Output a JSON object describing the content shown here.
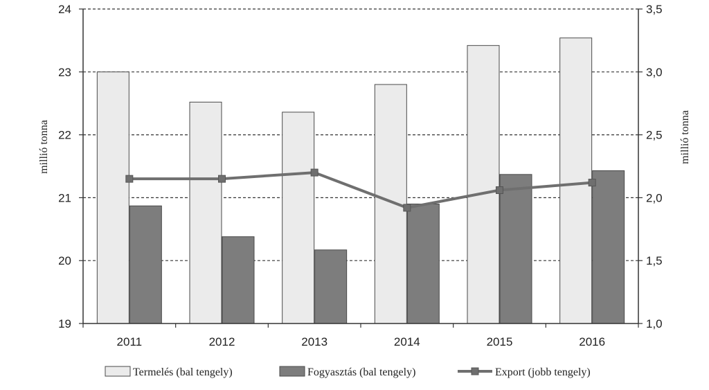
{
  "chart_data": {
    "type": "bar",
    "categories": [
      "2011",
      "2012",
      "2013",
      "2014",
      "2015",
      "2016"
    ],
    "series": [
      {
        "name": "Termelés (bal tengely)",
        "type": "bar",
        "axis": "left",
        "color": "#ebebeb",
        "values": [
          23.0,
          22.52,
          22.36,
          22.8,
          23.42,
          23.54
        ]
      },
      {
        "name": "Fogyasztás (bal tengely)",
        "type": "bar",
        "axis": "left",
        "color": "#7d7d7d",
        "values": [
          20.87,
          20.38,
          20.17,
          20.9,
          21.37,
          21.43
        ]
      },
      {
        "name": "Export (jobb tengely)",
        "type": "line",
        "axis": "right",
        "color": "#6f6f6f",
        "values": [
          2.15,
          2.15,
          2.2,
          1.92,
          2.06,
          2.12
        ]
      }
    ],
    "ylabel": "millió tonna",
    "ylabel_right": "millió tonna",
    "ylim": [
      19,
      24
    ],
    "ylim_right": [
      1.0,
      3.5
    ],
    "yticks": [
      "19",
      "20",
      "21",
      "22",
      "23",
      "24"
    ],
    "yticks_right": [
      "1,0",
      "1,5",
      "2,0",
      "2,5",
      "3,0",
      "3,5"
    ],
    "grid": true,
    "legend_position": "bottom"
  }
}
